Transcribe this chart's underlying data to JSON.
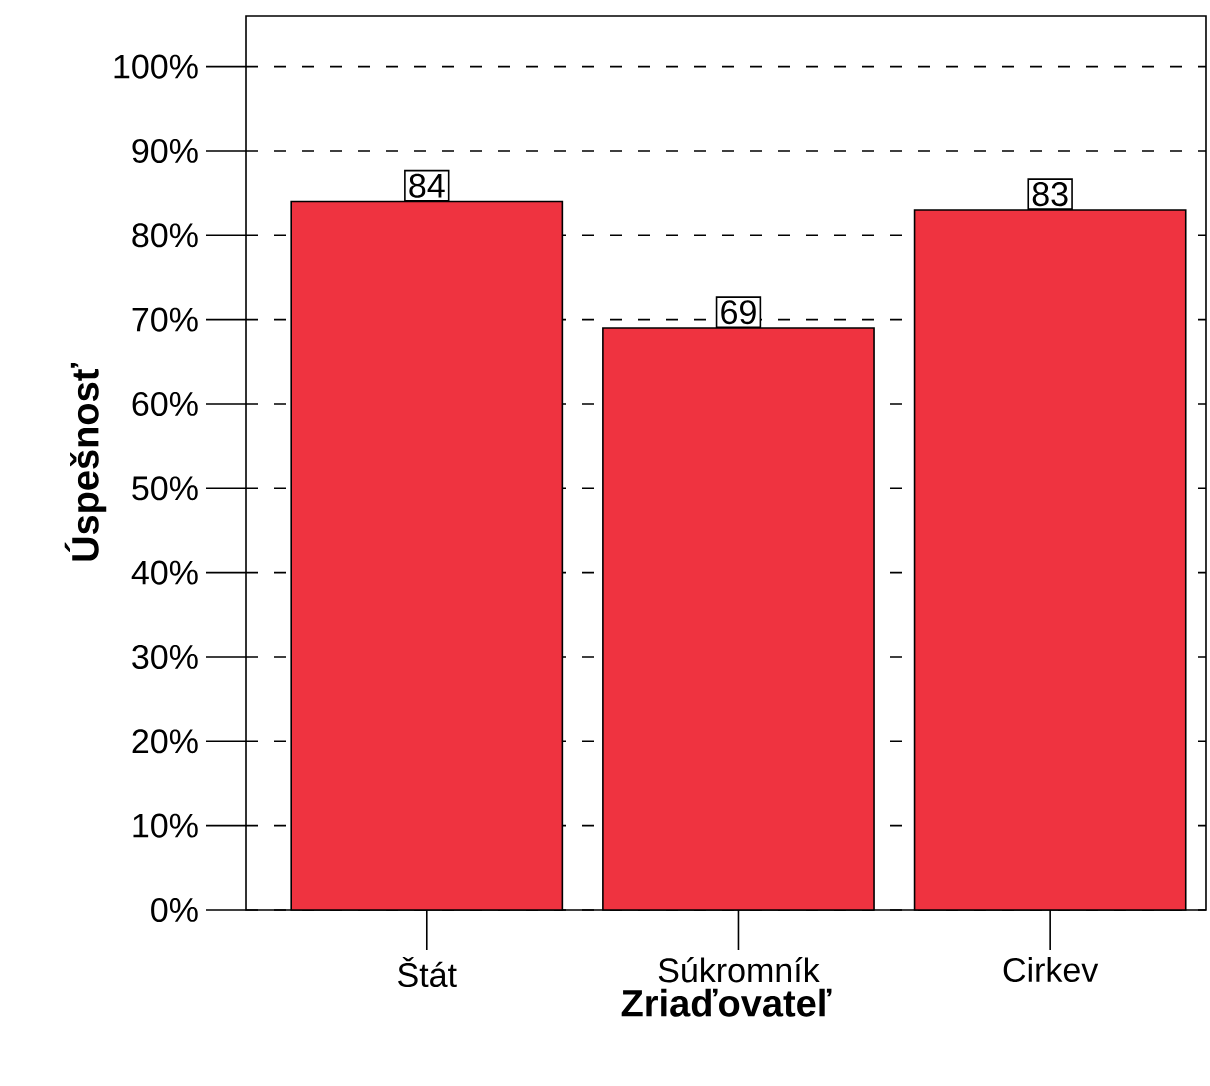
{
  "chart_data": {
    "type": "bar",
    "xlabel": "Zriaďovateľ",
    "ylabel": "Úspešnosť",
    "categories": [
      "Štát",
      "Súkromník",
      "Cirkev"
    ],
    "values": [
      84,
      69,
      83
    ],
    "color": "#ef3340",
    "data_labels": true,
    "ylim": [
      0,
      106
    ],
    "yticks": [
      {
        "value": 0,
        "label": "0%"
      },
      {
        "value": 10,
        "label": "10%"
      },
      {
        "value": 20,
        "label": "20%"
      },
      {
        "value": 30,
        "label": "30%"
      },
      {
        "value": 40,
        "label": "40%"
      },
      {
        "value": 50,
        "label": "50%"
      },
      {
        "value": 60,
        "label": "60%"
      },
      {
        "value": 70,
        "label": "70%"
      },
      {
        "value": 80,
        "label": "80%"
      },
      {
        "value": 90,
        "label": "90%"
      },
      {
        "value": 100,
        "label": "100%"
      }
    ],
    "grid": "y"
  }
}
